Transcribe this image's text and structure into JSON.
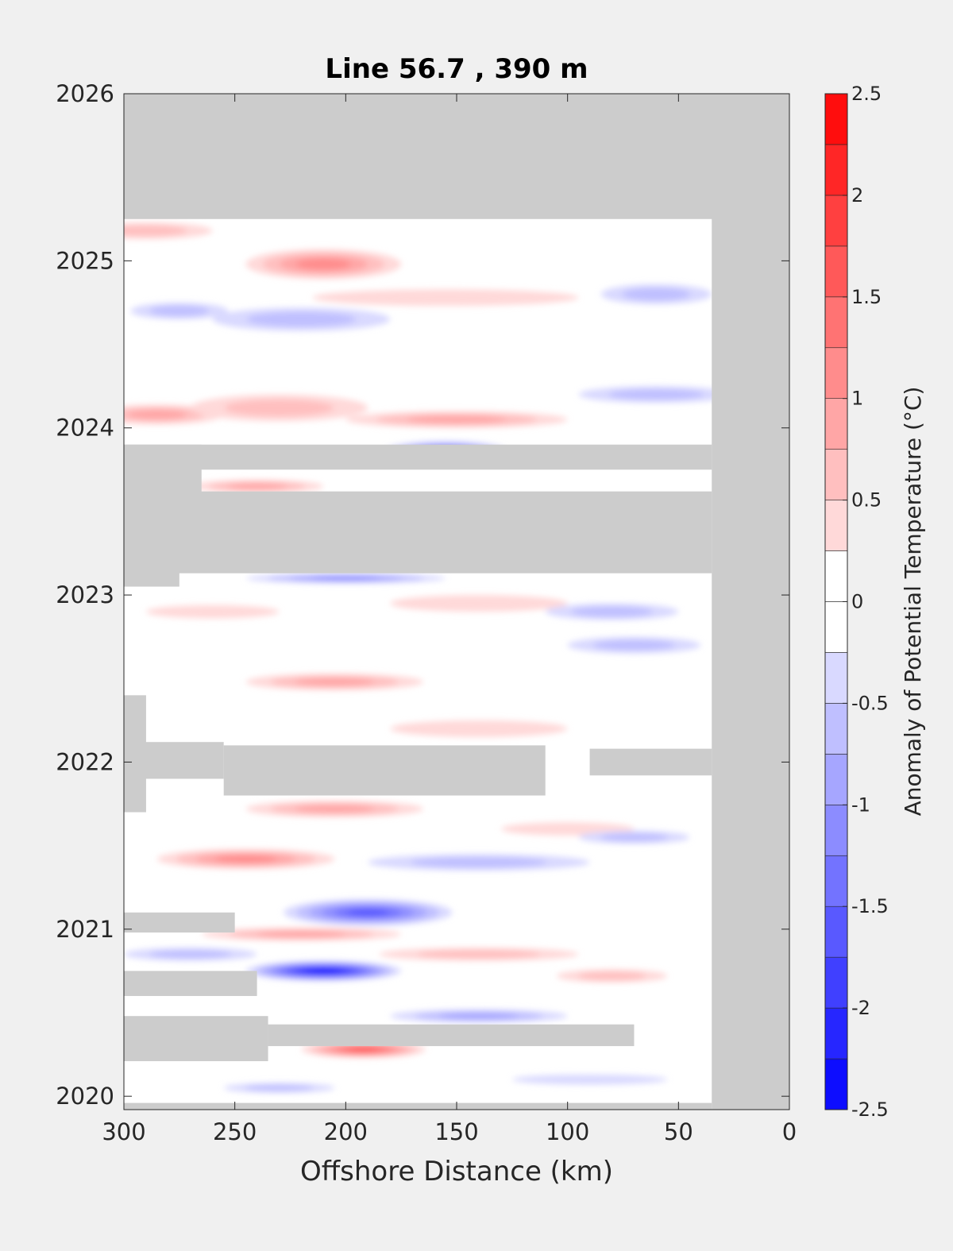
{
  "chart_data": {
    "type": "heatmap",
    "title": "Line 56.7 , 390 m",
    "xlabel": "Offshore Distance (km)",
    "ylabel": "",
    "x_axis": {
      "range": [
        300,
        0
      ],
      "reversed": true,
      "ticks": [
        300,
        250,
        200,
        150,
        100,
        50,
        0
      ],
      "tick_labels": [
        "300",
        "250",
        "200",
        "150",
        "100",
        "50",
        "0"
      ]
    },
    "y_axis": {
      "range": [
        2019.92,
        2026
      ],
      "ticks": [
        2020,
        2021,
        2022,
        2023,
        2024,
        2025,
        2026
      ],
      "tick_labels": [
        "2020",
        "2021",
        "2022",
        "2023",
        "2024",
        "2025",
        "2026"
      ]
    },
    "colorbar": {
      "label": "Anomaly of Potential Temperature (°C)",
      "range": [
        -2.5,
        2.5
      ],
      "levels": [
        -2.5,
        -2.25,
        -2,
        -1.75,
        -1.5,
        -1.25,
        -1,
        -0.75,
        -0.5,
        -0.25,
        0,
        0.25,
        0.5,
        0.75,
        1,
        1.25,
        1.5,
        1.75,
        2,
        2.25,
        2.5
      ],
      "ticks": [
        -2.5,
        -2,
        -1.5,
        -1,
        -0.5,
        0,
        0.5,
        1,
        1.5,
        2,
        2.5
      ],
      "tick_labels": [
        "-2.5",
        "-2",
        "-1.5",
        "-1",
        "-0.5",
        "0",
        "0.5",
        "1",
        "1.5",
        "2",
        "2.5"
      ]
    },
    "no_data_color": "#cccccc",
    "grid": false,
    "anomaly_features": [
      {
        "x": 210,
        "y": 2024.98,
        "rx": 35,
        "ry": 0.09,
        "value": 1.1
      },
      {
        "x": 290,
        "y": 2025.18,
        "rx": 30,
        "ry": 0.05,
        "value": 0.5
      },
      {
        "x": 275,
        "y": 2024.7,
        "rx": 22,
        "ry": 0.05,
        "value": -0.6
      },
      {
        "x": 220,
        "y": 2024.65,
        "rx": 40,
        "ry": 0.07,
        "value": -0.7
      },
      {
        "x": 155,
        "y": 2024.78,
        "rx": 60,
        "ry": 0.05,
        "value": 0.45
      },
      {
        "x": 60,
        "y": 2024.8,
        "rx": 25,
        "ry": 0.06,
        "value": -0.6
      },
      {
        "x": 60,
        "y": 2024.2,
        "rx": 35,
        "ry": 0.05,
        "value": -0.7
      },
      {
        "x": 285,
        "y": 2024.08,
        "rx": 30,
        "ry": 0.06,
        "value": 0.9
      },
      {
        "x": 230,
        "y": 2024.12,
        "rx": 40,
        "ry": 0.08,
        "value": 0.55
      },
      {
        "x": 150,
        "y": 2024.05,
        "rx": 50,
        "ry": 0.05,
        "value": 0.75
      },
      {
        "x": 155,
        "y": 2023.86,
        "rx": 28,
        "ry": 0.06,
        "value": -1.6
      },
      {
        "x": 240,
        "y": 2023.65,
        "rx": 30,
        "ry": 0.04,
        "value": 0.9
      },
      {
        "x": 200,
        "y": 2023.1,
        "rx": 45,
        "ry": 0.03,
        "value": -1.2
      },
      {
        "x": 140,
        "y": 2022.95,
        "rx": 40,
        "ry": 0.05,
        "value": 0.45
      },
      {
        "x": 260,
        "y": 2022.9,
        "rx": 30,
        "ry": 0.04,
        "value": 0.45
      },
      {
        "x": 80,
        "y": 2022.9,
        "rx": 30,
        "ry": 0.05,
        "value": -0.5
      },
      {
        "x": 70,
        "y": 2022.7,
        "rx": 30,
        "ry": 0.05,
        "value": -0.7
      },
      {
        "x": 205,
        "y": 2022.48,
        "rx": 40,
        "ry": 0.05,
        "value": 0.8
      },
      {
        "x": 140,
        "y": 2022.2,
        "rx": 40,
        "ry": 0.05,
        "value": 0.4
      },
      {
        "x": 205,
        "y": 2021.72,
        "rx": 40,
        "ry": 0.05,
        "value": 0.9
      },
      {
        "x": 100,
        "y": 2021.6,
        "rx": 30,
        "ry": 0.04,
        "value": 0.4
      },
      {
        "x": 70,
        "y": 2021.55,
        "rx": 25,
        "ry": 0.04,
        "value": -0.6
      },
      {
        "x": 245,
        "y": 2021.42,
        "rx": 40,
        "ry": 0.06,
        "value": 1.0
      },
      {
        "x": 140,
        "y": 2021.4,
        "rx": 50,
        "ry": 0.05,
        "value": -0.6
      },
      {
        "x": 190,
        "y": 2021.1,
        "rx": 38,
        "ry": 0.08,
        "value": -1.7
      },
      {
        "x": 220,
        "y": 2020.97,
        "rx": 45,
        "ry": 0.04,
        "value": 0.8
      },
      {
        "x": 140,
        "y": 2020.85,
        "rx": 45,
        "ry": 0.04,
        "value": 0.7
      },
      {
        "x": 210,
        "y": 2020.75,
        "rx": 35,
        "ry": 0.06,
        "value": -2.3
      },
      {
        "x": 270,
        "y": 2020.85,
        "rx": 30,
        "ry": 0.04,
        "value": -0.6
      },
      {
        "x": 80,
        "y": 2020.72,
        "rx": 25,
        "ry": 0.04,
        "value": 0.6
      },
      {
        "x": 140,
        "y": 2020.48,
        "rx": 40,
        "ry": 0.04,
        "value": -0.8
      },
      {
        "x": 192,
        "y": 2020.28,
        "rx": 28,
        "ry": 0.05,
        "value": 1.6
      },
      {
        "x": 230,
        "y": 2020.05,
        "rx": 25,
        "ry": 0.03,
        "value": -0.6
      },
      {
        "x": 90,
        "y": 2020.1,
        "rx": 35,
        "ry": 0.03,
        "value": -0.4
      }
    ],
    "no_data_regions": [
      {
        "x1": 300,
        "x2": 0,
        "y1": 2025.25,
        "y2": 2026
      },
      {
        "x1": 35,
        "x2": 0,
        "y1": 2019.92,
        "y2": 2026
      },
      {
        "x1": 300,
        "x2": 35,
        "y1": 2019.92,
        "y2": 2019.96
      },
      {
        "x1": 300,
        "x2": 35,
        "y1": 2023.75,
        "y2": 2023.9
      },
      {
        "x1": 300,
        "x2": 265,
        "y1": 2023.6,
        "y2": 2023.9
      },
      {
        "x1": 300,
        "x2": 35,
        "y1": 2023.13,
        "y2": 2023.62
      },
      {
        "x1": 300,
        "x2": 275,
        "y1": 2023.05,
        "y2": 2023.62
      },
      {
        "x1": 300,
        "x2": 290,
        "y1": 2021.7,
        "y2": 2022.4
      },
      {
        "x1": 300,
        "x2": 255,
        "y1": 2021.9,
        "y2": 2022.12
      },
      {
        "x1": 255,
        "x2": 110,
        "y1": 2021.8,
        "y2": 2022.1
      },
      {
        "x1": 90,
        "x2": 35,
        "y1": 2021.92,
        "y2": 2022.08
      },
      {
        "x1": 300,
        "x2": 250,
        "y1": 2020.98,
        "y2": 2021.1
      },
      {
        "x1": 300,
        "x2": 240,
        "y1": 2020.6,
        "y2": 2020.75
      },
      {
        "x1": 300,
        "x2": 235,
        "y1": 2020.21,
        "y2": 2020.48
      },
      {
        "x1": 235,
        "x2": 70,
        "y1": 2020.3,
        "y2": 2020.43
      }
    ]
  }
}
